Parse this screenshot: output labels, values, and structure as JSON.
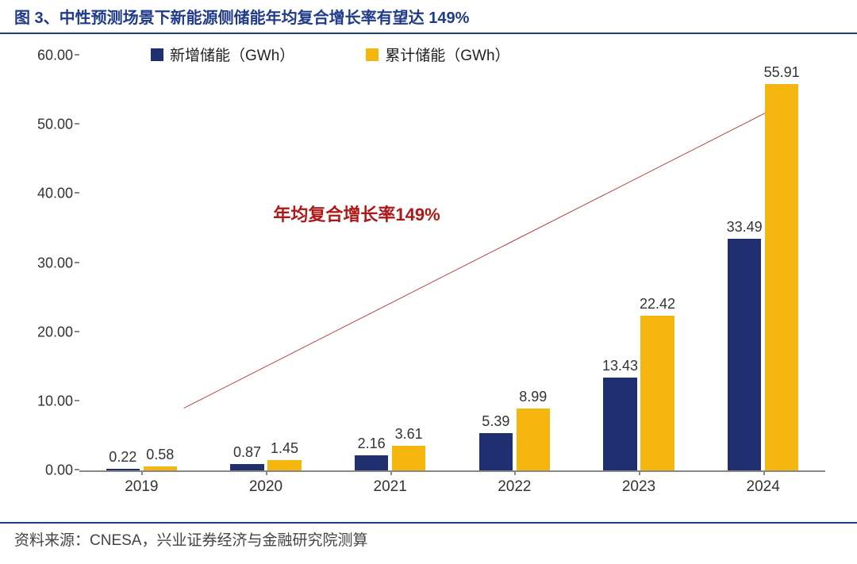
{
  "title": "图 3、中性预测场景下新能源侧储能年均复合增长率有望达 149%",
  "source": "资料来源：CNESA，兴业证券经济与金融研究院测算",
  "chart": {
    "type": "bar",
    "categories": [
      "2019",
      "2020",
      "2021",
      "2022",
      "2023",
      "2024"
    ],
    "series": [
      {
        "name": "新增储能（GWh）",
        "color": "#1f2f6f",
        "values": [
          0.22,
          0.87,
          2.16,
          5.39,
          13.43,
          33.49
        ],
        "labels": [
          "0.22",
          "0.87",
          "2.16",
          "5.39",
          "13.43",
          "33.49"
        ]
      },
      {
        "name": "累计储能（GWh）",
        "color": "#f5b70f",
        "values": [
          0.58,
          1.45,
          3.61,
          8.99,
          22.42,
          55.91
        ],
        "labels": [
          "0.58",
          "1.45",
          "3.61",
          "8.99",
          "22.42",
          "55.91"
        ]
      }
    ],
    "ylim": [
      0,
      60
    ],
    "ytick_step": 10,
    "ytick_labels": [
      "0.00",
      "10.00",
      "20.00",
      "30.00",
      "40.00",
      "50.00",
      "60.00"
    ],
    "bar_width_pct": 27,
    "bar_gap_pct": 3,
    "axis_color": "#888888",
    "tick_fontsize": 18,
    "label_fontsize": 19,
    "background_color": "#ffffff",
    "legend": {
      "items": [
        "新增储能（GWh）",
        "累计储能（GWh）"
      ],
      "colors": [
        "#1f2f6f",
        "#f5b70f"
      ],
      "fontsize": 19
    },
    "annotation": {
      "text": "年均复合增长率149%",
      "color": "#b01818",
      "fontsize": 22,
      "arrow": {
        "from_pct": [
          14,
          85
        ],
        "to_pct": [
          94,
          12
        ],
        "stroke_width": 4,
        "color": "#b01818"
      },
      "text_pos_pct": [
        26,
        35
      ]
    }
  }
}
